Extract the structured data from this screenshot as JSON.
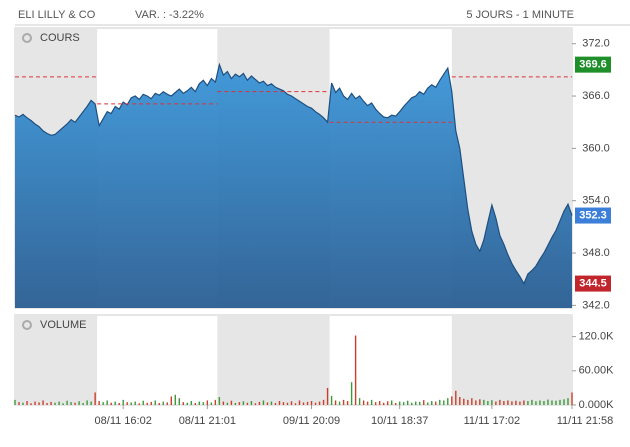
{
  "header": {
    "title": "ELI LILLY & CO",
    "change": "VAR. : -3.22%",
    "period": "5 JOURS - 1 MINUTE"
  },
  "chart_data": [
    {
      "type": "area",
      "label": "COURS",
      "color": "#2f7fc4",
      "line_color": "#1f4f80",
      "values": [
        363.8,
        363.6,
        363.9,
        363.5,
        363.2,
        362.8,
        362.5,
        362.0,
        361.7,
        361.5,
        361.6,
        362.0,
        362.4,
        362.8,
        363.3,
        363.0,
        363.6,
        364.2,
        364.8,
        365.5,
        365.1,
        362.6,
        363.4,
        364.2,
        364.0,
        364.8,
        364.5,
        365.3,
        365.0,
        365.8,
        366.0,
        365.6,
        366.2,
        366.0,
        365.7,
        366.3,
        366.1,
        366.5,
        366.2,
        366.0,
        366.4,
        366.8,
        366.3,
        366.6,
        367.0,
        366.5,
        367.4,
        367.8,
        367.2,
        368.0,
        367.6,
        369.6,
        368.4,
        368.8,
        368.0,
        368.5,
        368.2,
        368.6,
        367.8,
        368.3,
        367.9,
        367.5,
        367.7,
        367.2,
        367.4,
        367.0,
        366.8,
        366.6,
        366.2,
        366.0,
        365.7,
        365.4,
        365.1,
        364.8,
        364.6,
        364.2,
        363.9,
        363.5,
        363.0,
        367.5,
        366.4,
        366.9,
        366.0,
        365.6,
        366.3,
        365.7,
        366.0,
        365.4,
        364.9,
        365.2,
        364.5,
        364.0,
        363.6,
        363.5,
        363.8,
        363.7,
        364.2,
        364.8,
        365.3,
        365.8,
        366.0,
        366.5,
        366.2,
        366.9,
        367.3,
        367.0,
        367.8,
        368.5,
        369.2,
        366.5,
        362.0,
        360.0,
        356.5,
        353.0,
        350.5,
        349.0,
        348.2,
        349.5,
        351.5,
        353.5,
        352.0,
        350.0,
        349.0,
        347.8,
        346.8,
        346.0,
        345.3,
        344.5,
        345.6,
        346.0,
        346.5,
        347.3,
        348.0,
        348.9,
        349.8,
        350.6,
        351.7,
        352.8,
        353.6,
        352.3
      ],
      "xlim": [
        0,
        139
      ],
      "xticks": [
        {
          "value": 27,
          "label": "08/11 16:02"
        },
        {
          "value": 48,
          "label": "08/11 21:01"
        },
        {
          "value": 74,
          "label": "09/11 20:09"
        },
        {
          "value": 96,
          "label": "10/11 18:37"
        },
        {
          "value": 119,
          "label": "11/11 17:02"
        },
        {
          "value": 139,
          "label": "11/11 21:58"
        }
      ],
      "ylim": [
        341.7,
        373.8
      ],
      "yticks": [
        {
          "value": 342,
          "label": "342.0"
        },
        {
          "value": 348,
          "label": "348.0"
        },
        {
          "value": 354,
          "label": "354.0"
        },
        {
          "value": 360,
          "label": "360.0"
        },
        {
          "value": 366,
          "label": "366.0"
        },
        {
          "value": 372,
          "label": "372.0"
        }
      ],
      "sessions": [
        {
          "start": 0,
          "end": 20.5,
          "shade": true,
          "reference": 368.2
        },
        {
          "start": 20.5,
          "end": 50.5,
          "shade": false,
          "reference": 365.1
        },
        {
          "start": 50.5,
          "end": 78.5,
          "shade": true,
          "reference": 366.5
        },
        {
          "start": 78.5,
          "end": 109,
          "shade": false,
          "reference": 363.0
        },
        {
          "start": 109,
          "end": 139,
          "shade": true,
          "reference": 368.2
        }
      ],
      "reference_color": "#d9343a",
      "markers": [
        {
          "value": 369.6,
          "color": "#1f8f2a"
        },
        {
          "value": 352.3,
          "color": "#3b7fd9"
        },
        {
          "value": 344.5,
          "color": "#c0262c"
        }
      ]
    },
    {
      "type": "bar",
      "label": "VOLUME",
      "up_color": "#3a9a3a",
      "down_color": "#c8402a",
      "values": [
        9000,
        5000,
        4000,
        7000,
        3000,
        6000,
        4500,
        8000,
        3500,
        5500,
        4000,
        6000,
        3000,
        7500,
        5000,
        4000,
        6500,
        3500,
        8000,
        6000,
        22000,
        7000,
        5000,
        8000,
        4000,
        6000,
        3500,
        9000,
        5000,
        4500,
        6000,
        3000,
        7500,
        4000,
        5500,
        8000,
        3500,
        6000,
        4500,
        15000,
        18000,
        12000,
        5000,
        4000,
        7000,
        3500,
        6000,
        5000,
        8000,
        4500,
        9000,
        14000,
        6000,
        4000,
        7500,
        3500,
        5000,
        6500,
        4000,
        7000,
        3000,
        5500,
        8000,
        4500,
        6000,
        3500,
        7000,
        5000,
        4000,
        6500,
        3000,
        8000,
        4500,
        5500,
        7000,
        4000,
        6000,
        9000,
        30000,
        16000,
        8000,
        6000,
        9000,
        7000,
        40000,
        122000,
        12000,
        8000,
        6000,
        9000,
        5000,
        7000,
        4000,
        6500,
        8000,
        3500,
        6000,
        5000,
        7500,
        4000,
        6000,
        5500,
        8500,
        4500,
        7000,
        6000,
        9000,
        8000,
        12000,
        15000,
        25000,
        14000,
        11000,
        9000,
        12000,
        8000,
        10000,
        9000,
        7000,
        8500,
        6000,
        9000,
        7000,
        8000,
        6500,
        7500,
        6000,
        8000,
        7000,
        9000,
        6500,
        8000,
        7000,
        9500,
        8000,
        7500,
        9000,
        10000,
        12000,
        22000
      ],
      "ylim": [
        0,
        158000
      ],
      "yticks": [
        {
          "value": 0,
          "label": "0.000K"
        },
        {
          "value": 60000,
          "label": "60.00K"
        },
        {
          "value": 120000,
          "label": "120.0K"
        }
      ]
    }
  ]
}
